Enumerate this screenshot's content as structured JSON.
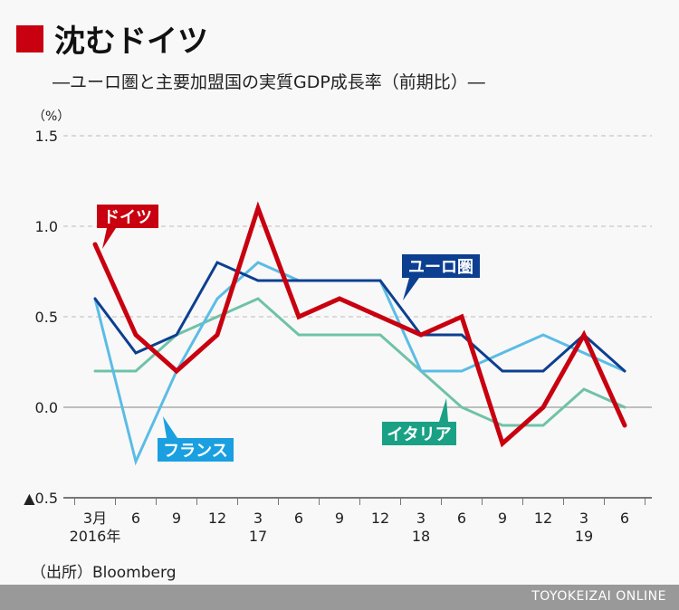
{
  "title": "沈むドイツ",
  "subtitle": "―ユーロ圏と主要加盟国の実質GDP成長率（前期比）―",
  "source": "（出所）Bloomberg",
  "footer": "TOYOKEIZAI ONLINE",
  "chart_data": {
    "type": "line",
    "unit_label": "（%）",
    "ylim": [
      -0.5,
      1.5
    ],
    "yticks": [
      {
        "v": 1.5,
        "label": "1.5"
      },
      {
        "v": 1.0,
        "label": "1.0"
      },
      {
        "v": 0.5,
        "label": "0.5"
      },
      {
        "v": 0.0,
        "label": "0.0"
      },
      {
        "v": -0.5,
        "label": "▲0.5"
      }
    ],
    "categories": [
      [
        "3月",
        "2016年"
      ],
      [
        "6",
        ""
      ],
      [
        "9",
        ""
      ],
      [
        "12",
        ""
      ],
      [
        "3",
        "17"
      ],
      [
        "6",
        ""
      ],
      [
        "9",
        ""
      ],
      [
        "12",
        ""
      ],
      [
        "3",
        "18"
      ],
      [
        "6",
        ""
      ],
      [
        "9",
        ""
      ],
      [
        "12",
        ""
      ],
      [
        "3",
        "19"
      ],
      [
        "6",
        ""
      ]
    ],
    "grid": "dashed horizontal",
    "series": [
      {
        "name": "イタリア",
        "color": "#6fc2a8",
        "label_color": "#1aa185",
        "width": 3,
        "values": [
          0.2,
          0.2,
          0.4,
          0.5,
          0.6,
          0.4,
          0.4,
          0.4,
          0.2,
          0.0,
          -0.1,
          -0.1,
          0.1,
          0.0
        ]
      },
      {
        "name": "フランス",
        "color": "#5bbce6",
        "label_color": "#1aa0e0",
        "width": 3,
        "values": [
          0.6,
          -0.3,
          0.2,
          0.6,
          0.8,
          0.7,
          0.7,
          0.7,
          0.2,
          0.2,
          0.3,
          0.4,
          0.3,
          0.2
        ]
      },
      {
        "name": "ユーロ圏",
        "color": "#0d3f91",
        "label_color": "#0d3f91",
        "width": 3,
        "values": [
          0.6,
          0.3,
          0.4,
          0.8,
          0.7,
          0.7,
          0.7,
          0.7,
          0.4,
          0.4,
          0.2,
          0.2,
          0.4,
          0.2
        ]
      },
      {
        "name": "ドイツ",
        "color": "#c8000f",
        "label_color": "#c8000f",
        "width": 5,
        "values": [
          0.9,
          0.4,
          0.2,
          0.4,
          1.1,
          0.5,
          0.6,
          0.5,
          0.4,
          0.5,
          -0.2,
          0.0,
          0.4,
          -0.1
        ]
      }
    ]
  }
}
